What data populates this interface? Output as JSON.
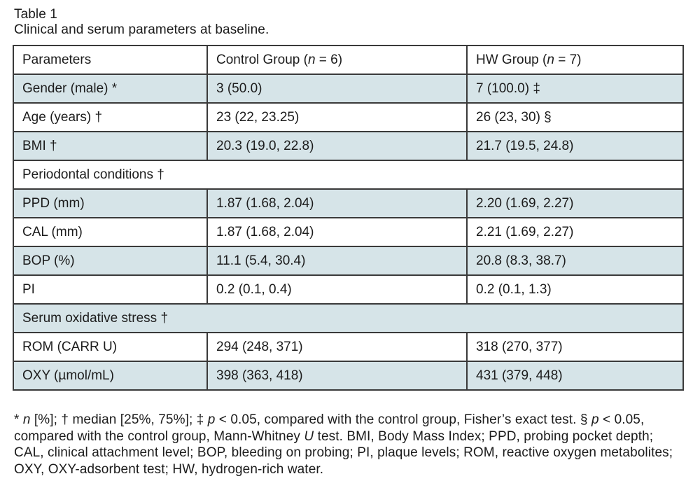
{
  "title": {
    "label": "Table 1",
    "caption": "Clinical and serum parameters at baseline."
  },
  "colors": {
    "row_shade": "#d6e4e8",
    "border": "#3a3a3a",
    "text": "#1c1c1c",
    "background": "#ffffff"
  },
  "table": {
    "header": {
      "parameters": "Parameters",
      "control_group": [
        {
          "t": "Control Group ("
        },
        {
          "t": "n",
          "i": true
        },
        {
          "t": " = 6)"
        }
      ],
      "hw_group": [
        {
          "t": "HW Group ("
        },
        {
          "t": "n",
          "i": true
        },
        {
          "t": " = 7)"
        }
      ]
    },
    "rows": [
      {
        "param": "Gender (male) *",
        "control": "3 (50.0)",
        "hw": "7 (100.0) ‡",
        "shaded": true,
        "section": false
      },
      {
        "param": "Age (years) †",
        "control": "23 (22, 23.25)",
        "hw": "26 (23, 30) §",
        "shaded": false,
        "section": false
      },
      {
        "param": "BMI †",
        "control": "20.3 (19.0, 22.8)",
        "hw": "21.7 (19.5, 24.8)",
        "shaded": true,
        "section": false
      },
      {
        "param": "Periodontal conditions †",
        "control": "",
        "hw": "",
        "shaded": false,
        "section": true
      },
      {
        "param": "PPD (mm)",
        "control": "1.87 (1.68, 2.04)",
        "hw": "2.20 (1.69, 2.27)",
        "shaded": true,
        "section": false
      },
      {
        "param": "CAL (mm)",
        "control": "1.87 (1.68, 2.04)",
        "hw": "2.21 (1.69, 2.27)",
        "shaded": false,
        "section": false
      },
      {
        "param": "BOP (%)",
        "control": "11.1 (5.4, 30.4)",
        "hw": "20.8 (8.3, 38.7)",
        "shaded": true,
        "section": false
      },
      {
        "param": "PI",
        "control": "0.2 (0.1, 0.4)",
        "hw": "0.2 (0.1, 1.3)",
        "shaded": false,
        "section": false
      },
      {
        "param": "Serum oxidative stress †",
        "control": "",
        "hw": "",
        "shaded": true,
        "section": true
      },
      {
        "param": "ROM (CARR U)",
        "control": "294 (248, 371)",
        "hw": "318 (270, 377)",
        "shaded": false,
        "section": false
      },
      {
        "param": "OXY (µmol/mL)",
        "control": "398 (363, 418)",
        "hw": "431 (379, 448)",
        "shaded": true,
        "section": false
      }
    ]
  },
  "footnote": {
    "lines": [
      [
        {
          "t": "* "
        },
        {
          "t": "n",
          "i": true
        },
        {
          "t": " [%]; † median [25%, 75%]; ‡ "
        },
        {
          "t": "p",
          "i": true
        },
        {
          "t": " < 0.05, compared with the control group, Fisher’s exact test. § "
        },
        {
          "t": "p",
          "i": true
        },
        {
          "t": " < 0.05,"
        }
      ],
      [
        {
          "t": "compared with the control group, Mann-Whitney "
        },
        {
          "t": "U",
          "i": true
        },
        {
          "t": " test. BMI, Body Mass Index; PPD, probing pocket depth;"
        }
      ],
      [
        {
          "t": "CAL, clinical attachment level; BOP, bleeding on probing; PI, plaque levels; ROM, reactive oxygen metabolites;"
        }
      ],
      [
        {
          "t": "OXY, OXY-adsorbent test; HW, hydrogen-rich water."
        }
      ]
    ]
  }
}
